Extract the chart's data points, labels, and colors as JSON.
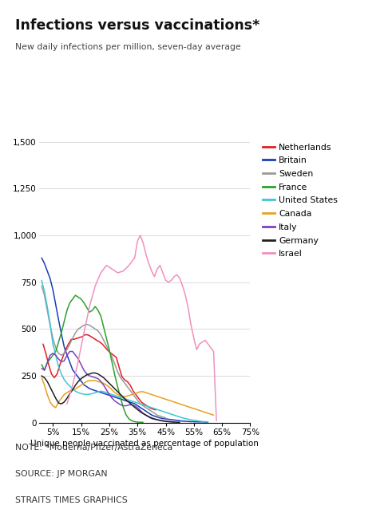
{
  "title": "Infections versus vaccinations*",
  "subtitle": "New daily infections per million, seven-day average",
  "xlabel": "Unique people vaccinated as percentage of population",
  "note": "NOTE: *Moderna/Pfizer/AstraZeneca",
  "source": "SOURCE: JP MORGAN",
  "credit": "STRAITS TIMES GRAPHICS",
  "xlim": [
    0,
    75
  ],
  "ylim": [
    0,
    1500
  ],
  "yticks": [
    0,
    250,
    500,
    750,
    1000,
    1250,
    1500
  ],
  "xticks": [
    5,
    15,
    25,
    35,
    45,
    55,
    65,
    75
  ],
  "countries": {
    "Netherlands": {
      "color": "#e02020",
      "x": [
        1.5,
        2.5,
        3.5,
        4.5,
        5.5,
        6.5,
        7.5,
        8.5,
        9.5,
        10.5,
        11.5,
        12.5,
        13.5,
        14.5,
        15.5,
        16.5,
        17.5,
        18.5,
        19.5,
        20.5,
        21.5,
        22.5,
        23.5,
        24.5,
        25.5,
        26.5,
        27.5,
        28.5,
        29.5,
        30.5,
        31.5,
        32.5,
        33.5,
        34.5,
        35.5,
        36.5,
        37.5,
        38.5,
        39.5,
        40.5,
        41.5
      ],
      "y": [
        420,
        370,
        310,
        260,
        240,
        260,
        310,
        350,
        390,
        420,
        445,
        445,
        450,
        455,
        460,
        470,
        468,
        460,
        450,
        440,
        432,
        420,
        402,
        385,
        372,
        360,
        348,
        295,
        245,
        228,
        218,
        198,
        168,
        148,
        128,
        108,
        98,
        88,
        78,
        72,
        68
      ]
    },
    "Britain": {
      "color": "#1a3eb5",
      "x": [
        1,
        2,
        3,
        4,
        5,
        6,
        7,
        8,
        9,
        10,
        11,
        12,
        13,
        14,
        15,
        16,
        17,
        18,
        19,
        20,
        21,
        22,
        23,
        24,
        25,
        26,
        27,
        28,
        29,
        30,
        31,
        32,
        33,
        34,
        35,
        36,
        37,
        38,
        39,
        40,
        41,
        42,
        43,
        44,
        45,
        46,
        47,
        48,
        49,
        50,
        51,
        52,
        53,
        54,
        55,
        56,
        57,
        58,
        59,
        60
      ],
      "y": [
        880,
        850,
        810,
        770,
        710,
        630,
        550,
        475,
        405,
        362,
        322,
        282,
        262,
        242,
        222,
        202,
        192,
        182,
        176,
        171,
        166,
        161,
        156,
        151,
        146,
        141,
        136,
        131,
        126,
        121,
        116,
        111,
        106,
        101,
        91,
        81,
        71,
        61,
        51,
        41,
        35,
        30,
        25,
        22,
        20,
        18,
        16,
        14,
        12,
        10,
        8,
        7,
        6,
        5,
        5,
        4,
        4,
        4,
        3,
        3
      ]
    },
    "Sweden": {
      "color": "#999999",
      "x": [
        1,
        2,
        3,
        4,
        5,
        6,
        7,
        8,
        9,
        10,
        11,
        12,
        13,
        14,
        15,
        16,
        17,
        18,
        19,
        20,
        21,
        22,
        23,
        24,
        25,
        26,
        27,
        28,
        29,
        30,
        31,
        32,
        33,
        34,
        35,
        36,
        37,
        38,
        39,
        40,
        41,
        42,
        43,
        44,
        45
      ],
      "y": [
        730,
        680,
        600,
        520,
        450,
        400,
        370,
        360,
        370,
        390,
        420,
        450,
        480,
        500,
        510,
        520,
        525,
        520,
        510,
        500,
        490,
        470,
        440,
        410,
        380,
        350,
        310,
        270,
        240,
        220,
        200,
        180,
        160,
        140,
        120,
        100,
        90,
        80,
        70,
        60,
        50,
        40,
        35,
        30,
        25
      ]
    },
    "France": {
      "color": "#2da02d",
      "x": [
        1,
        2,
        3,
        4,
        5,
        6,
        7,
        8,
        9,
        10,
        11,
        12,
        13,
        14,
        15,
        16,
        17,
        18,
        19,
        20,
        21,
        22,
        23,
        24,
        25,
        26,
        27,
        28,
        29,
        30,
        31,
        32,
        33,
        34,
        35,
        36,
        37
      ],
      "y": [
        310,
        280,
        320,
        340,
        360,
        380,
        430,
        480,
        540,
        600,
        640,
        660,
        680,
        670,
        660,
        640,
        615,
        590,
        600,
        620,
        600,
        570,
        510,
        450,
        390,
        320,
        250,
        190,
        130,
        80,
        40,
        20,
        10,
        5,
        3,
        2,
        2
      ]
    },
    "United_States": {
      "color": "#40c4d4",
      "x": [
        1,
        2,
        3,
        4,
        5,
        6,
        7,
        8,
        9,
        10,
        11,
        12,
        13,
        14,
        15,
        16,
        17,
        18,
        19,
        20,
        21,
        22,
        23,
        24,
        25,
        26,
        27,
        28,
        29,
        30,
        31,
        32,
        33,
        34,
        35,
        36,
        37,
        38,
        39,
        40,
        41,
        42,
        43,
        44,
        45,
        46,
        47,
        48,
        49,
        50,
        51,
        52,
        53,
        54,
        55,
        56,
        57,
        58,
        59,
        60
      ],
      "y": [
        760,
        700,
        620,
        530,
        420,
        360,
        300,
        260,
        230,
        210,
        195,
        180,
        168,
        160,
        155,
        152,
        150,
        152,
        155,
        160,
        165,
        168,
        165,
        160,
        155,
        150,
        145,
        140,
        135,
        130,
        125,
        120,
        115,
        110,
        105,
        100,
        95,
        90,
        85,
        80,
        75,
        70,
        65,
        60,
        55,
        50,
        45,
        40,
        35,
        30,
        25,
        22,
        18,
        15,
        12,
        10,
        8,
        6,
        5,
        4
      ]
    },
    "Canada": {
      "color": "#e8a020",
      "x": [
        1,
        2,
        3,
        4,
        5,
        6,
        7,
        8,
        9,
        10,
        11,
        12,
        13,
        14,
        15,
        16,
        17,
        18,
        19,
        20,
        21,
        22,
        23,
        24,
        25,
        26,
        27,
        28,
        29,
        30,
        31,
        32,
        33,
        34,
        35,
        36,
        37,
        38,
        39,
        40,
        41,
        42,
        43,
        44,
        45,
        46,
        47,
        48,
        49,
        50,
        51,
        52,
        53,
        54,
        55,
        56,
        57,
        58,
        59,
        60,
        61,
        62
      ],
      "y": [
        240,
        200,
        150,
        110,
        90,
        80,
        110,
        130,
        150,
        160,
        170,
        175,
        180,
        190,
        200,
        210,
        220,
        225,
        225,
        225,
        220,
        215,
        210,
        200,
        190,
        175,
        160,
        150,
        145,
        140,
        140,
        145,
        150,
        155,
        160,
        165,
        165,
        160,
        155,
        150,
        145,
        140,
        135,
        130,
        125,
        120,
        115,
        110,
        105,
        100,
        95,
        90,
        85,
        80,
        75,
        70,
        65,
        60,
        55,
        50,
        45,
        40
      ]
    },
    "Italy": {
      "color": "#8040c0",
      "x": [
        1,
        2,
        3,
        4,
        5,
        6,
        7,
        8,
        9,
        10,
        11,
        12,
        13,
        14,
        15,
        16,
        17,
        18,
        19,
        20,
        21,
        22,
        23,
        24,
        25,
        26,
        27,
        28,
        29,
        30,
        31,
        32,
        33,
        34,
        35,
        36,
        37,
        38,
        39,
        40,
        41,
        42,
        43,
        44,
        45,
        46,
        47,
        48
      ],
      "y": [
        290,
        280,
        320,
        360,
        370,
        360,
        340,
        325,
        330,
        360,
        380,
        380,
        360,
        340,
        310,
        280,
        260,
        250,
        245,
        240,
        235,
        220,
        200,
        175,
        150,
        130,
        115,
        105,
        95,
        90,
        90,
        95,
        95,
        90,
        80,
        65,
        50,
        40,
        30,
        22,
        18,
        15,
        12,
        10,
        8,
        6,
        5,
        4
      ]
    },
    "Germany": {
      "color": "#202020",
      "x": [
        1,
        2,
        3,
        4,
        5,
        6,
        7,
        8,
        9,
        10,
        11,
        12,
        13,
        14,
        15,
        16,
        17,
        18,
        19,
        20,
        21,
        22,
        23,
        24,
        25,
        26,
        27,
        28,
        29,
        30,
        31,
        32,
        33,
        34,
        35,
        36,
        37,
        38,
        39,
        40,
        41,
        42,
        43,
        44,
        45,
        46,
        47,
        48,
        49,
        50
      ],
      "y": [
        250,
        240,
        220,
        190,
        160,
        130,
        105,
        100,
        110,
        130,
        155,
        175,
        200,
        220,
        235,
        245,
        255,
        260,
        265,
        265,
        260,
        250,
        240,
        225,
        210,
        195,
        180,
        165,
        150,
        135,
        120,
        108,
        95,
        82,
        70,
        58,
        48,
        40,
        32,
        25,
        20,
        16,
        12,
        9,
        7,
        5,
        4,
        3,
        2,
        2
      ]
    },
    "Israel": {
      "color": "#f090c0",
      "x": [
        10,
        12,
        14,
        16,
        18,
        20,
        22,
        24,
        26,
        28,
        30,
        32,
        33,
        34,
        35,
        36,
        37,
        38,
        39,
        40,
        41,
        42,
        43,
        44,
        45,
        46,
        47,
        48,
        49,
        50,
        51,
        52,
        53,
        54,
        55,
        56,
        57,
        58,
        59,
        60,
        61,
        62,
        63
      ],
      "y": [
        100,
        200,
        330,
        480,
        620,
        730,
        800,
        840,
        820,
        800,
        810,
        840,
        860,
        880,
        970,
        1000,
        960,
        900,
        850,
        810,
        780,
        820,
        840,
        800,
        760,
        750,
        760,
        780,
        790,
        770,
        730,
        680,
        610,
        520,
        450,
        390,
        420,
        430,
        440,
        420,
        400,
        380,
        10
      ]
    }
  }
}
